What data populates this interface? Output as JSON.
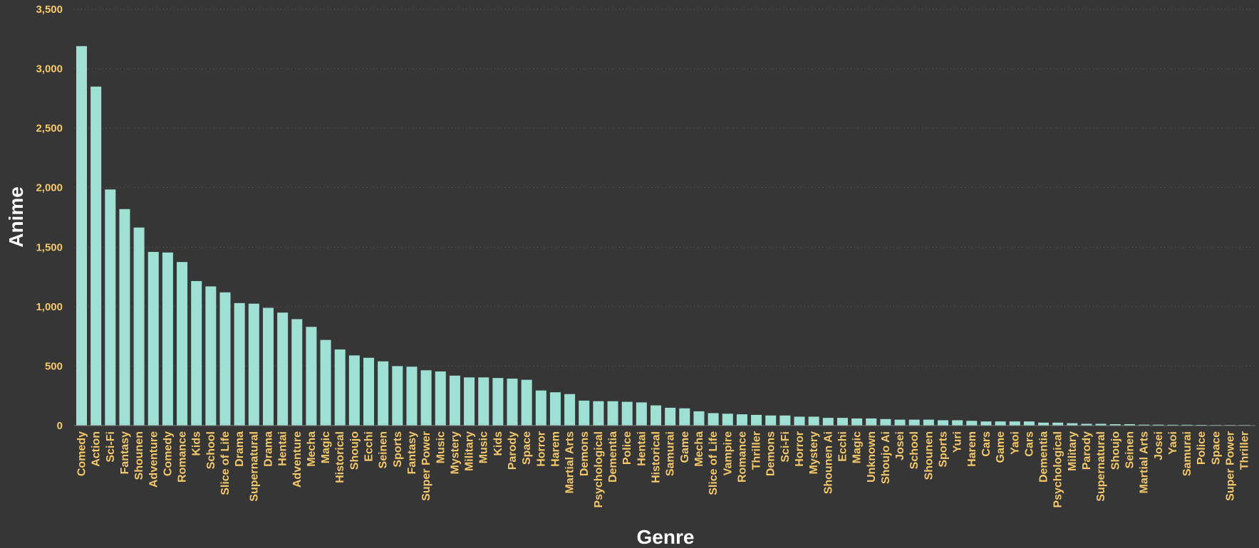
{
  "colors": {
    "background": "#363636",
    "bar": "#9fe0d4",
    "tick_text": "#f5c96b",
    "axis_title": "#ffffff",
    "grid": "#5a5a5a"
  },
  "chart_data": {
    "type": "bar",
    "xlabel": "Genre",
    "ylabel": "Anime",
    "ylim": [
      0,
      3500
    ],
    "yticks": [
      "0",
      "500",
      "1,000",
      "1,500",
      "2,000",
      "2,500",
      "3,000",
      "3,500"
    ],
    "ytick_values": [
      0,
      500,
      1000,
      1500,
      2000,
      2500,
      3000,
      3500
    ],
    "grid": true,
    "legend": "none",
    "categories": [
      "Comedy",
      "Action",
      "Sci-Fi",
      "Fantasy",
      "Shounen",
      "Adventure",
      "Comedy",
      "Romance",
      "Kids",
      "School",
      "Slice of Life",
      "Drama",
      "Supernatural",
      "Drama",
      "Hentai",
      "Adventure",
      "Mecha",
      "Magic",
      "Historical",
      "Shoujo",
      "Ecchi",
      "Seinen",
      "Sports",
      "Fantasy",
      "Super Power",
      "Music",
      "Mystery",
      "Military",
      "Music",
      "Kids",
      "Parody",
      "Space",
      "Horror",
      "Harem",
      "Martial Arts",
      "Demons",
      "Psychological",
      "Dementia",
      "Police",
      "Hentai",
      "Historical",
      "Samurai",
      "Game",
      "Mecha",
      "Slice of Life",
      "Vampire",
      "Romance",
      "Thriller",
      "Demons",
      "Sci-Fi",
      "Horror",
      "Mystery",
      "Shounen Ai",
      "Ecchi",
      "Magic",
      "Unknown",
      "Shoujo Ai",
      "Josei",
      "School",
      "Shounen",
      "Sports",
      "Yuri",
      "Harem",
      "Cars",
      "Game",
      "Yaoi",
      "Cars",
      "Dementia",
      "Psychological",
      "Military",
      "Parody",
      "Supernatural",
      "Shoujo",
      "Seinen",
      "Martial Arts",
      "Josei",
      "Yaoi",
      "Samurai",
      "Police",
      "Space",
      "Super Power",
      "Thriller"
    ],
    "values": [
      3190,
      2850,
      1985,
      1820,
      1665,
      1460,
      1455,
      1375,
      1215,
      1170,
      1120,
      1030,
      1025,
      990,
      950,
      895,
      830,
      720,
      640,
      590,
      570,
      540,
      500,
      495,
      465,
      455,
      420,
      405,
      405,
      400,
      395,
      385,
      295,
      280,
      265,
      210,
      205,
      205,
      200,
      195,
      170,
      150,
      145,
      120,
      105,
      100,
      95,
      90,
      85,
      85,
      75,
      75,
      65,
      65,
      60,
      60,
      55,
      50,
      50,
      50,
      45,
      45,
      40,
      35,
      35,
      35,
      35,
      25,
      25,
      20,
      15,
      15,
      12,
      12,
      8,
      8,
      7,
      7,
      6,
      5,
      5,
      5
    ]
  }
}
